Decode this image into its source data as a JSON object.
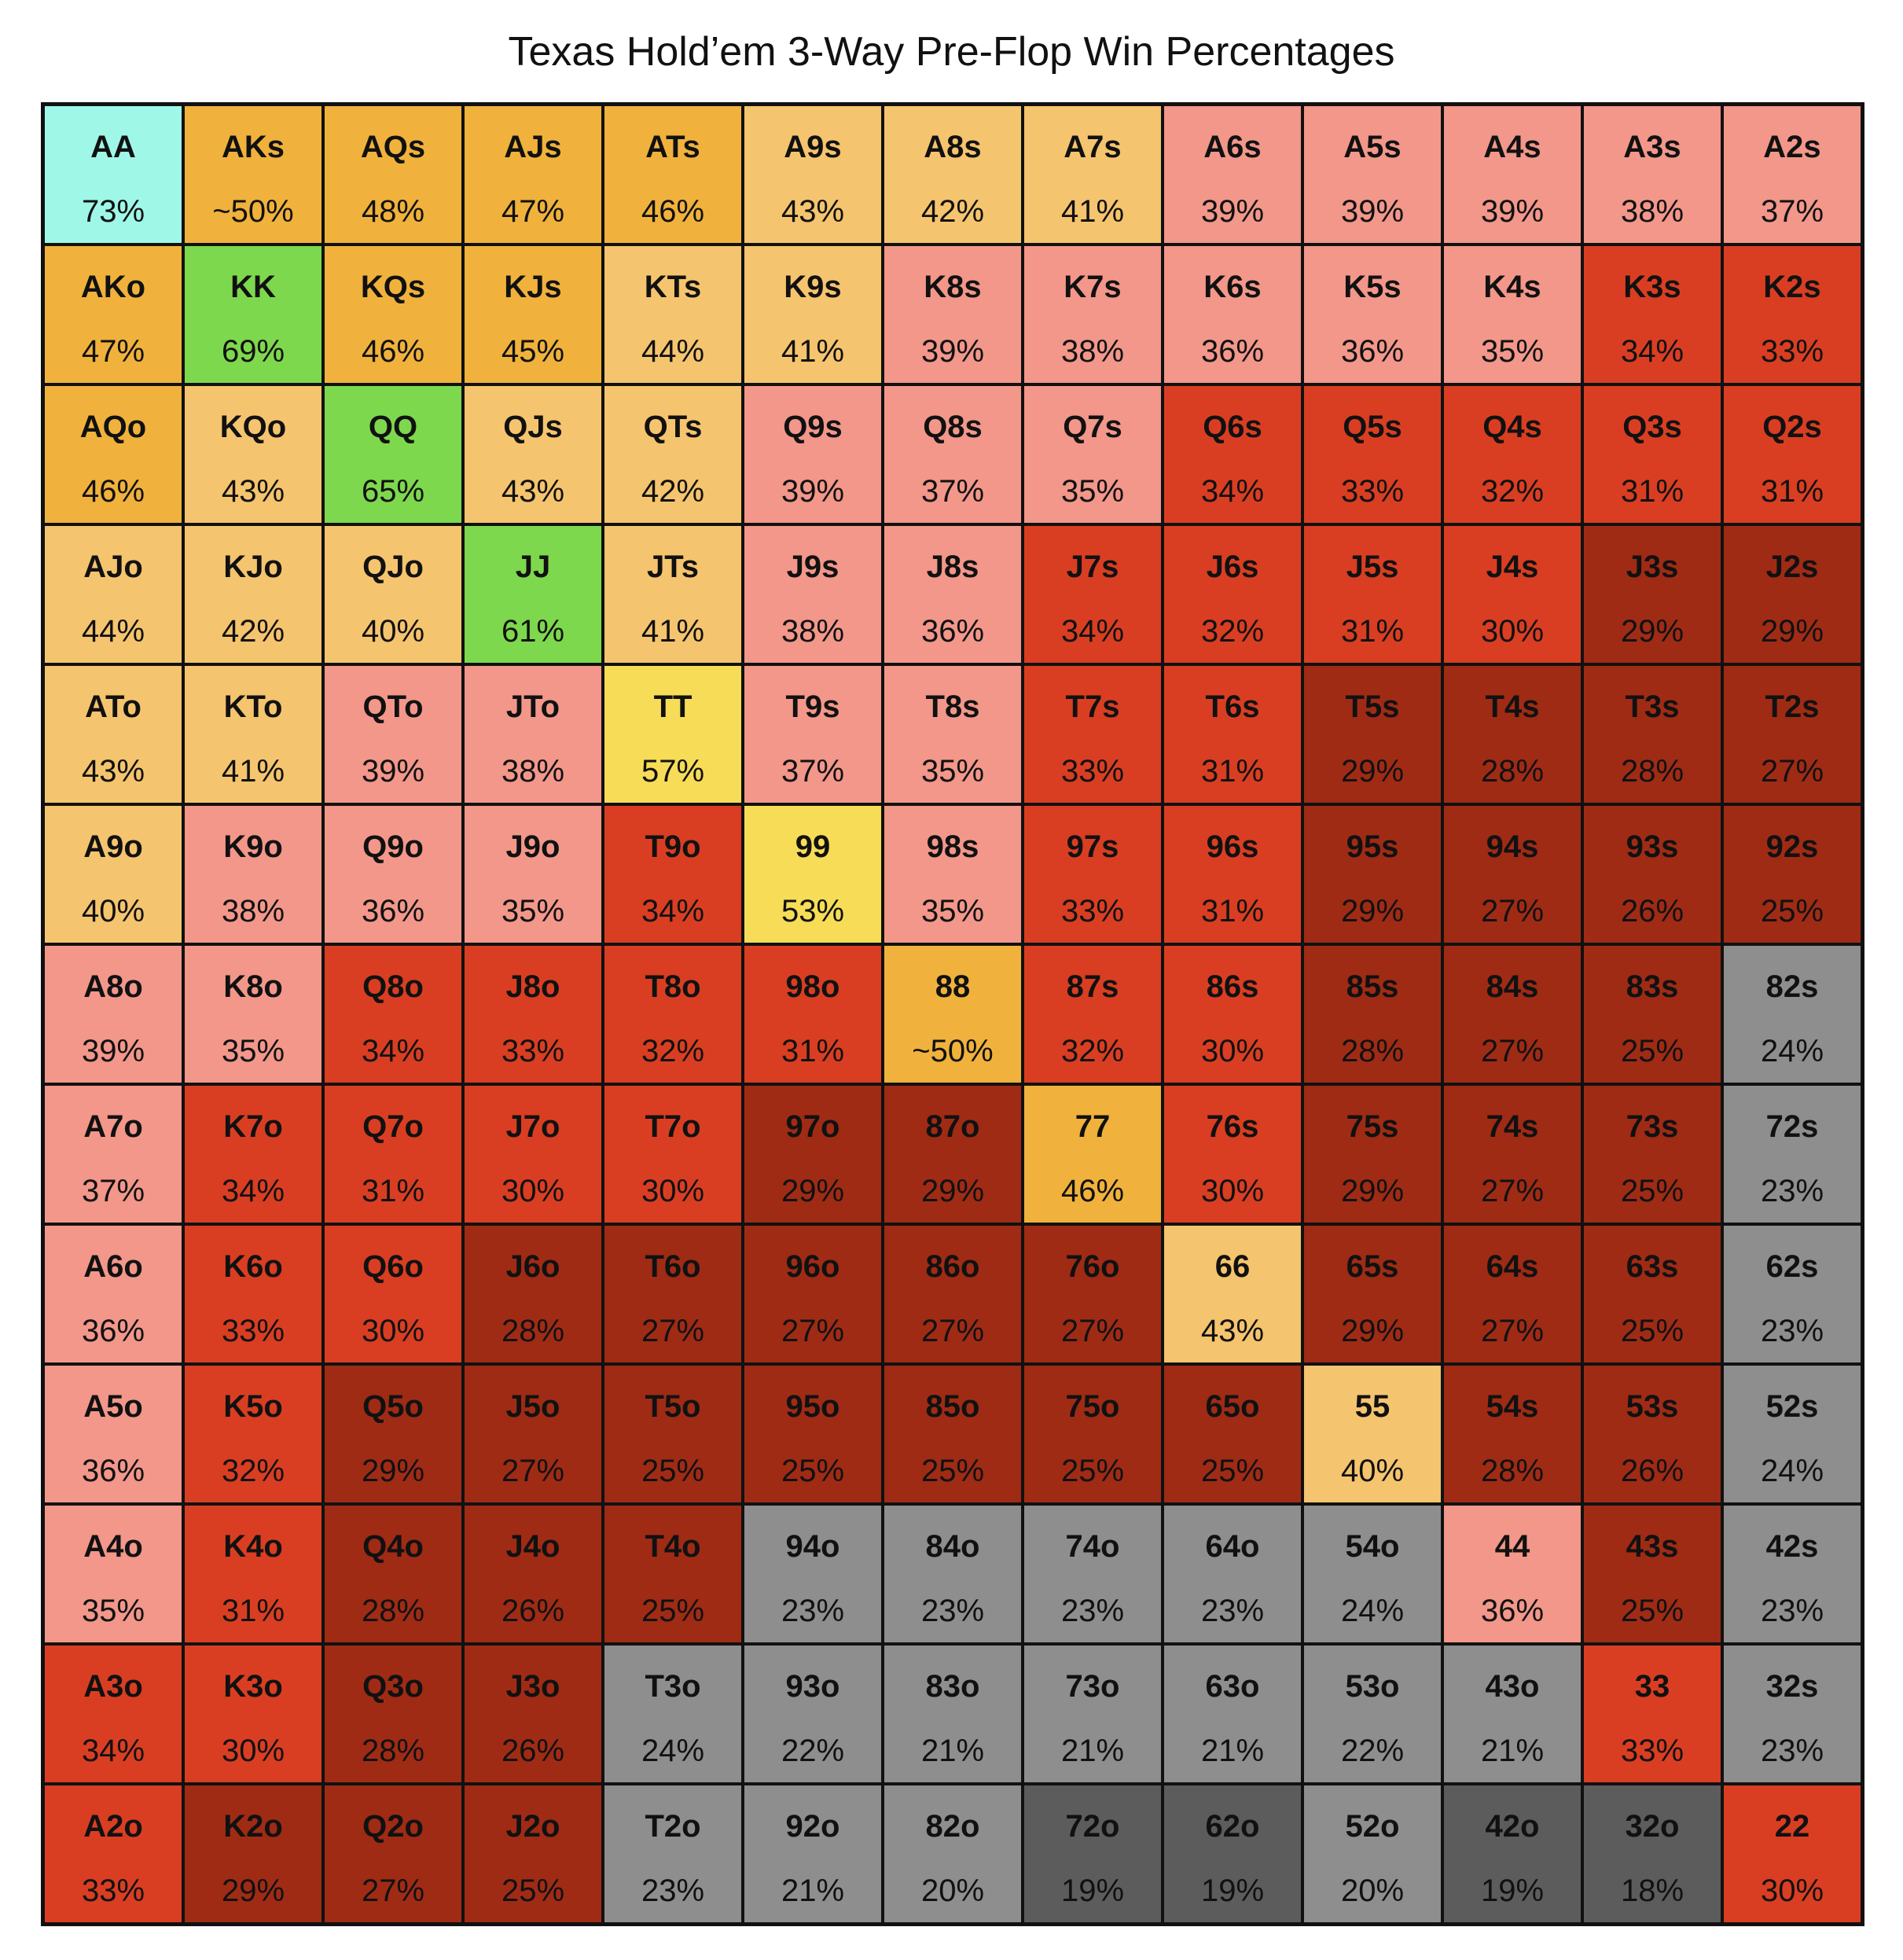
{
  "chart_data": {
    "type": "heatmap",
    "title": "Texas Hold’em 3-Way Pre-Flop Win Percentages",
    "rows": [
      [
        [
          "AA",
          "73%"
        ],
        [
          "AKs",
          "~50%"
        ],
        [
          "AQs",
          "48%"
        ],
        [
          "AJs",
          "47%"
        ],
        [
          "ATs",
          "46%"
        ],
        [
          "A9s",
          "43%"
        ],
        [
          "A8s",
          "42%"
        ],
        [
          "A7s",
          "41%"
        ],
        [
          "A6s",
          "39%"
        ],
        [
          "A5s",
          "39%"
        ],
        [
          "A4s",
          "39%"
        ],
        [
          "A3s",
          "38%"
        ],
        [
          "A2s",
          "37%"
        ]
      ],
      [
        [
          "AKo",
          "47%"
        ],
        [
          "KK",
          "69%"
        ],
        [
          "KQs",
          "46%"
        ],
        [
          "KJs",
          "45%"
        ],
        [
          "KTs",
          "44%"
        ],
        [
          "K9s",
          "41%"
        ],
        [
          "K8s",
          "39%"
        ],
        [
          "K7s",
          "38%"
        ],
        [
          "K6s",
          "36%"
        ],
        [
          "K5s",
          "36%"
        ],
        [
          "K4s",
          "35%"
        ],
        [
          "K3s",
          "34%"
        ],
        [
          "K2s",
          "33%"
        ]
      ],
      [
        [
          "AQo",
          "46%"
        ],
        [
          "KQo",
          "43%"
        ],
        [
          "QQ",
          "65%"
        ],
        [
          "QJs",
          "43%"
        ],
        [
          "QTs",
          "42%"
        ],
        [
          "Q9s",
          "39%"
        ],
        [
          "Q8s",
          "37%"
        ],
        [
          "Q7s",
          "35%"
        ],
        [
          "Q6s",
          "34%"
        ],
        [
          "Q5s",
          "33%"
        ],
        [
          "Q4s",
          "32%"
        ],
        [
          "Q3s",
          "31%"
        ],
        [
          "Q2s",
          "31%"
        ]
      ],
      [
        [
          "AJo",
          "44%"
        ],
        [
          "KJo",
          "42%"
        ],
        [
          "QJo",
          "40%"
        ],
        [
          "JJ",
          "61%"
        ],
        [
          "JTs",
          "41%"
        ],
        [
          "J9s",
          "38%"
        ],
        [
          "J8s",
          "36%"
        ],
        [
          "J7s",
          "34%"
        ],
        [
          "J6s",
          "32%"
        ],
        [
          "J5s",
          "31%"
        ],
        [
          "J4s",
          "30%"
        ],
        [
          "J3s",
          "29%"
        ],
        [
          "J2s",
          "29%"
        ]
      ],
      [
        [
          "ATo",
          "43%"
        ],
        [
          "KTo",
          "41%"
        ],
        [
          "QTo",
          "39%"
        ],
        [
          "JTo",
          "38%"
        ],
        [
          "TT",
          "57%"
        ],
        [
          "T9s",
          "37%"
        ],
        [
          "T8s",
          "35%"
        ],
        [
          "T7s",
          "33%"
        ],
        [
          "T6s",
          "31%"
        ],
        [
          "T5s",
          "29%"
        ],
        [
          "T4s",
          "28%"
        ],
        [
          "T3s",
          "28%"
        ],
        [
          "T2s",
          "27%"
        ]
      ],
      [
        [
          "A9o",
          "40%"
        ],
        [
          "K9o",
          "38%"
        ],
        [
          "Q9o",
          "36%"
        ],
        [
          "J9o",
          "35%"
        ],
        [
          "T9o",
          "34%"
        ],
        [
          "99",
          "53%"
        ],
        [
          "98s",
          "35%"
        ],
        [
          "97s",
          "33%"
        ],
        [
          "96s",
          "31%"
        ],
        [
          "95s",
          "29%"
        ],
        [
          "94s",
          "27%"
        ],
        [
          "93s",
          "26%"
        ],
        [
          "92s",
          "25%"
        ]
      ],
      [
        [
          "A8o",
          "39%"
        ],
        [
          "K8o",
          "35%"
        ],
        [
          "Q8o",
          "34%"
        ],
        [
          "J8o",
          "33%"
        ],
        [
          "T8o",
          "32%"
        ],
        [
          "98o",
          "31%"
        ],
        [
          "88",
          "~50%"
        ],
        [
          "87s",
          "32%"
        ],
        [
          "86s",
          "30%"
        ],
        [
          "85s",
          "28%"
        ],
        [
          "84s",
          "27%"
        ],
        [
          "83s",
          "25%"
        ],
        [
          "82s",
          "24%"
        ]
      ],
      [
        [
          "A7o",
          "37%"
        ],
        [
          "K7o",
          "34%"
        ],
        [
          "Q7o",
          "31%"
        ],
        [
          "J7o",
          "30%"
        ],
        [
          "T7o",
          "30%"
        ],
        [
          "97o",
          "29%"
        ],
        [
          "87o",
          "29%"
        ],
        [
          "77",
          "46%"
        ],
        [
          "76s",
          "30%"
        ],
        [
          "75s",
          "29%"
        ],
        [
          "74s",
          "27%"
        ],
        [
          "73s",
          "25%"
        ],
        [
          "72s",
          "23%"
        ]
      ],
      [
        [
          "A6o",
          "36%"
        ],
        [
          "K6o",
          "33%"
        ],
        [
          "Q6o",
          "30%"
        ],
        [
          "J6o",
          "28%"
        ],
        [
          "T6o",
          "27%"
        ],
        [
          "96o",
          "27%"
        ],
        [
          "86o",
          "27%"
        ],
        [
          "76o",
          "27%"
        ],
        [
          "66",
          "43%"
        ],
        [
          "65s",
          "29%"
        ],
        [
          "64s",
          "27%"
        ],
        [
          "63s",
          "25%"
        ],
        [
          "62s",
          "23%"
        ]
      ],
      [
        [
          "A5o",
          "36%"
        ],
        [
          "K5o",
          "32%"
        ],
        [
          "Q5o",
          "29%"
        ],
        [
          "J5o",
          "27%"
        ],
        [
          "T5o",
          "25%"
        ],
        [
          "95o",
          "25%"
        ],
        [
          "85o",
          "25%"
        ],
        [
          "75o",
          "25%"
        ],
        [
          "65o",
          "25%"
        ],
        [
          "55",
          "40%"
        ],
        [
          "54s",
          "28%"
        ],
        [
          "53s",
          "26%"
        ],
        [
          "52s",
          "24%"
        ]
      ],
      [
        [
          "A4o",
          "35%"
        ],
        [
          "K4o",
          "31%"
        ],
        [
          "Q4o",
          "28%"
        ],
        [
          "J4o",
          "26%"
        ],
        [
          "T4o",
          "25%"
        ],
        [
          "94o",
          "23%"
        ],
        [
          "84o",
          "23%"
        ],
        [
          "74o",
          "23%"
        ],
        [
          "64o",
          "23%"
        ],
        [
          "54o",
          "24%"
        ],
        [
          "44",
          "36%"
        ],
        [
          "43s",
          "25%"
        ],
        [
          "42s",
          "23%"
        ]
      ],
      [
        [
          "A3o",
          "34%"
        ],
        [
          "K3o",
          "30%"
        ],
        [
          "Q3o",
          "28%"
        ],
        [
          "J3o",
          "26%"
        ],
        [
          "T3o",
          "24%"
        ],
        [
          "93o",
          "22%"
        ],
        [
          "83o",
          "21%"
        ],
        [
          "73o",
          "21%"
        ],
        [
          "63o",
          "21%"
        ],
        [
          "53o",
          "22%"
        ],
        [
          "43o",
          "21%"
        ],
        [
          "33",
          "33%"
        ],
        [
          "32s",
          "23%"
        ]
      ],
      [
        [
          "A2o",
          "33%"
        ],
        [
          "K2o",
          "29%"
        ],
        [
          "Q2o",
          "27%"
        ],
        [
          "J2o",
          "25%"
        ],
        [
          "T2o",
          "23%"
        ],
        [
          "92o",
          "21%"
        ],
        [
          "82o",
          "20%"
        ],
        [
          "72o",
          "19%"
        ],
        [
          "62o",
          "19%"
        ],
        [
          "52o",
          "20%"
        ],
        [
          "42o",
          "19%"
        ],
        [
          "32o",
          "18%"
        ],
        [
          "22",
          "30%"
        ]
      ]
    ],
    "colors": {
      "cyan": "#9ff7e8",
      "green": "#7ed84d",
      "yellow": "#f7dc57",
      "orange": "#f0b23c",
      "light_orange": "#f5c46e",
      "salmon": "#f2978a",
      "red": "#d93e22",
      "dark_red": "#9f2b15",
      "gray": "#8e8e8e",
      "dark_gray": "#5c5c5c"
    },
    "color_map": [
      [
        "cyan",
        "orange",
        "orange",
        "orange",
        "orange",
        "light_orange",
        "light_orange",
        "light_orange",
        "salmon",
        "salmon",
        "salmon",
        "salmon",
        "salmon"
      ],
      [
        "orange",
        "green",
        "orange",
        "orange",
        "light_orange",
        "light_orange",
        "salmon",
        "salmon",
        "salmon",
        "salmon",
        "salmon",
        "red",
        "red"
      ],
      [
        "orange",
        "light_orange",
        "green",
        "light_orange",
        "light_orange",
        "salmon",
        "salmon",
        "salmon",
        "red",
        "red",
        "red",
        "red",
        "red"
      ],
      [
        "light_orange",
        "light_orange",
        "light_orange",
        "green",
        "light_orange",
        "salmon",
        "salmon",
        "red",
        "red",
        "red",
        "red",
        "dark_red",
        "dark_red"
      ],
      [
        "light_orange",
        "light_orange",
        "salmon",
        "salmon",
        "yellow",
        "salmon",
        "salmon",
        "red",
        "red",
        "dark_red",
        "dark_red",
        "dark_red",
        "dark_red"
      ],
      [
        "light_orange",
        "salmon",
        "salmon",
        "salmon",
        "red",
        "yellow",
        "salmon",
        "red",
        "red",
        "dark_red",
        "dark_red",
        "dark_red",
        "dark_red"
      ],
      [
        "salmon",
        "salmon",
        "red",
        "red",
        "red",
        "red",
        "orange",
        "red",
        "red",
        "dark_red",
        "dark_red",
        "dark_red",
        "gray"
      ],
      [
        "salmon",
        "red",
        "red",
        "red",
        "red",
        "dark_red",
        "dark_red",
        "orange",
        "red",
        "dark_red",
        "dark_red",
        "dark_red",
        "gray"
      ],
      [
        "salmon",
        "red",
        "red",
        "dark_red",
        "dark_red",
        "dark_red",
        "dark_red",
        "dark_red",
        "light_orange",
        "dark_red",
        "dark_red",
        "dark_red",
        "gray"
      ],
      [
        "salmon",
        "red",
        "dark_red",
        "dark_red",
        "dark_red",
        "dark_red",
        "dark_red",
        "dark_red",
        "dark_red",
        "light_orange",
        "dark_red",
        "dark_red",
        "gray"
      ],
      [
        "salmon",
        "red",
        "dark_red",
        "dark_red",
        "dark_red",
        "gray",
        "gray",
        "gray",
        "gray",
        "gray",
        "salmon",
        "dark_red",
        "gray"
      ],
      [
        "red",
        "red",
        "dark_red",
        "dark_red",
        "gray",
        "gray",
        "gray",
        "gray",
        "gray",
        "gray",
        "gray",
        "red",
        "gray"
      ],
      [
        "red",
        "dark_red",
        "dark_red",
        "dark_red",
        "gray",
        "gray",
        "gray",
        "dark_gray",
        "dark_gray",
        "gray",
        "dark_gray",
        "dark_gray",
        "red"
      ]
    ]
  }
}
